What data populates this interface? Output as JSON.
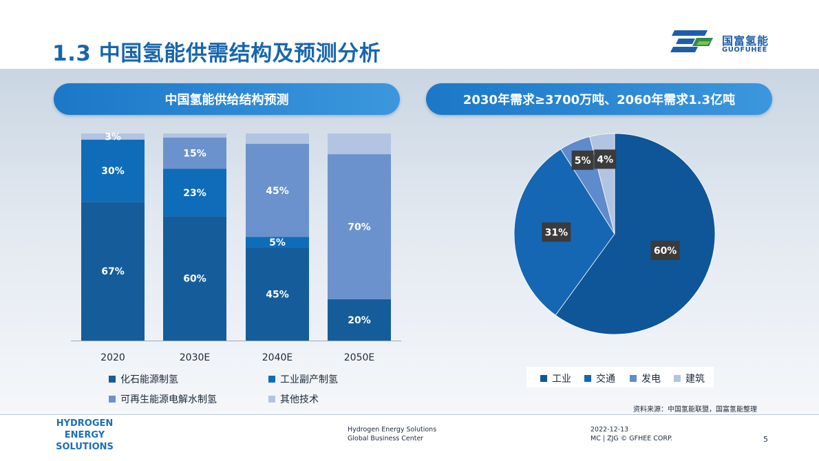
{
  "slide": {
    "title": "1.3 中国氢能供需结构及预测分析",
    "page_number": "5"
  },
  "logo": {
    "cn": "国富氢能",
    "en": "GUOFUHEE"
  },
  "panels": {
    "left_title": "中国氢能供给结构预测",
    "right_title": "2030年需求≥3700万吨、2060年需求1.3亿吨"
  },
  "colors": {
    "fossil": "#155d9a",
    "industrial": "#0f6cb8",
    "renewable": "#6b92cc",
    "other": "#b2c4e1",
    "pie_industry": "#0e5697",
    "pie_transport": "#1567b4",
    "pie_power": "#5e8bcc",
    "pie_building": "#b2c4e1",
    "label_box": "#3b3b3b",
    "pill": "#1b78c8",
    "brand": "#1866ad"
  },
  "chart_data": [
    {
      "type": "bar",
      "stacked": true,
      "title": "中国氢能供给结构预测",
      "categories": [
        "2020",
        "2030E",
        "2040E",
        "2050E"
      ],
      "ylim": [
        0,
        100
      ],
      "series": [
        {
          "name": "化石能源制氢",
          "color_key": "fossil",
          "values": [
            67,
            60,
            45,
            20
          ],
          "labels": [
            "67%",
            "60%",
            "45%",
            "20%"
          ]
        },
        {
          "name": "工业副产制氢",
          "color_key": "industrial",
          "values": [
            30,
            23,
            5,
            0
          ],
          "labels": [
            "30%",
            "23%",
            "5%",
            ""
          ]
        },
        {
          "name": "可再生能源电解水制氢",
          "color_key": "renewable",
          "values": [
            0,
            15,
            45,
            70
          ],
          "labels": [
            "",
            "15%",
            "45%",
            "70%"
          ]
        },
        {
          "name": "其他技术",
          "color_key": "other",
          "values": [
            3,
            2,
            5,
            10
          ],
          "labels": [
            "3%",
            "",
            "",
            ""
          ]
        }
      ],
      "legend": "bottom"
    },
    {
      "type": "pie",
      "title": "2030年需求≥3700万吨、2060年需求1.3亿吨",
      "slices": [
        {
          "name": "工业",
          "value": 60,
          "label": "60%",
          "color_key": "pie_industry"
        },
        {
          "name": "交通",
          "value": 31,
          "label": "31%",
          "color_key": "pie_transport"
        },
        {
          "name": "发电",
          "value": 5,
          "label": "5%",
          "color_key": "pie_power"
        },
        {
          "name": "建筑",
          "value": 4,
          "label": "4%",
          "color_key": "pie_building"
        }
      ],
      "legend": "bottom"
    }
  ],
  "source_note": "资料来源：中国氢能联盟，国富氢能整理",
  "footer": {
    "brand_lines": [
      "HYDROGEN",
      "ENERGY",
      "SOLUTIONS"
    ],
    "mid_lines": [
      "Hydrogen Energy Solutions",
      "Global Business Center"
    ],
    "date": "2022-12-13",
    "copyright": "MC | ZJG © GFHEE CORP."
  }
}
